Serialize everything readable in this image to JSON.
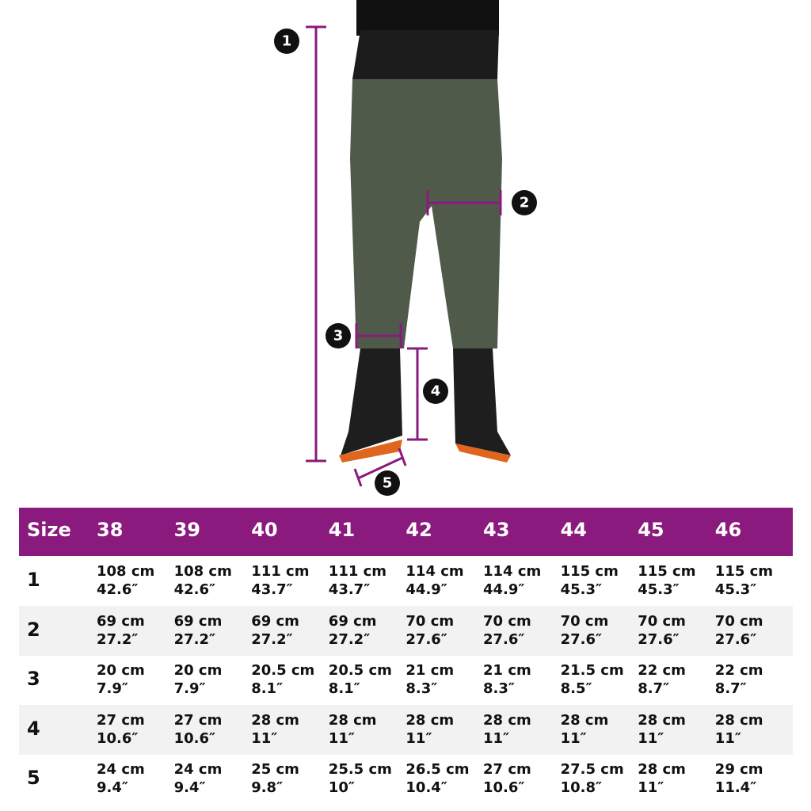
{
  "callouts": [
    "1",
    "2",
    "3",
    "4",
    "5"
  ],
  "table": {
    "header": [
      "Size",
      "38",
      "39",
      "40",
      "41",
      "42",
      "43",
      "44",
      "45",
      "46"
    ],
    "rows": [
      {
        "label": "1",
        "cells": [
          [
            "108 cm",
            "42.6″"
          ],
          [
            "108 cm",
            "42.6″"
          ],
          [
            "111 cm",
            "43.7″"
          ],
          [
            "111 cm",
            "43.7″"
          ],
          [
            "114 cm",
            "44.9″"
          ],
          [
            "114 cm",
            "44.9″"
          ],
          [
            "115 cm",
            "45.3″"
          ],
          [
            "115 cm",
            "45.3″"
          ],
          [
            "115 cm",
            "45.3″"
          ]
        ]
      },
      {
        "label": "2",
        "cells": [
          [
            "69 cm",
            "27.2″"
          ],
          [
            "69 cm",
            "27.2″"
          ],
          [
            "69 cm",
            "27.2″"
          ],
          [
            "69 cm",
            "27.2″"
          ],
          [
            "70 cm",
            "27.6″"
          ],
          [
            "70 cm",
            "27.6″"
          ],
          [
            "70 cm",
            "27.6″"
          ],
          [
            "70 cm",
            "27.6″"
          ],
          [
            "70 cm",
            "27.6″"
          ]
        ]
      },
      {
        "label": "3",
        "cells": [
          [
            "20 cm",
            "7.9″"
          ],
          [
            "20 cm",
            "7.9″"
          ],
          [
            "20.5 cm",
            "8.1″"
          ],
          [
            "20.5 cm",
            "8.1″"
          ],
          [
            "21 cm",
            "8.3″"
          ],
          [
            "21 cm",
            "8.3″"
          ],
          [
            "21.5 cm",
            "8.5″"
          ],
          [
            "22 cm",
            "8.7″"
          ],
          [
            "22 cm",
            "8.7″"
          ]
        ]
      },
      {
        "label": "4",
        "cells": [
          [
            "27 cm",
            "10.6″"
          ],
          [
            "27 cm",
            "10.6″"
          ],
          [
            "28 cm",
            "11″"
          ],
          [
            "28 cm",
            "11″"
          ],
          [
            "28 cm",
            "11″"
          ],
          [
            "28 cm",
            "11″"
          ],
          [
            "28 cm",
            "11″"
          ],
          [
            "28 cm",
            "11″"
          ],
          [
            "28 cm",
            "11″"
          ]
        ]
      },
      {
        "label": "5",
        "cells": [
          [
            "24 cm",
            "9.4″"
          ],
          [
            "24 cm",
            "9.4″"
          ],
          [
            "25 cm",
            "9.8″"
          ],
          [
            "25.5 cm",
            "10″"
          ],
          [
            "26.5 cm",
            "10.4″"
          ],
          [
            "27 cm",
            "10.6″"
          ],
          [
            "27.5 cm",
            "10.8″"
          ],
          [
            "28 cm",
            "11″"
          ],
          [
            "29 cm",
            "11.4″"
          ]
        ]
      }
    ]
  }
}
